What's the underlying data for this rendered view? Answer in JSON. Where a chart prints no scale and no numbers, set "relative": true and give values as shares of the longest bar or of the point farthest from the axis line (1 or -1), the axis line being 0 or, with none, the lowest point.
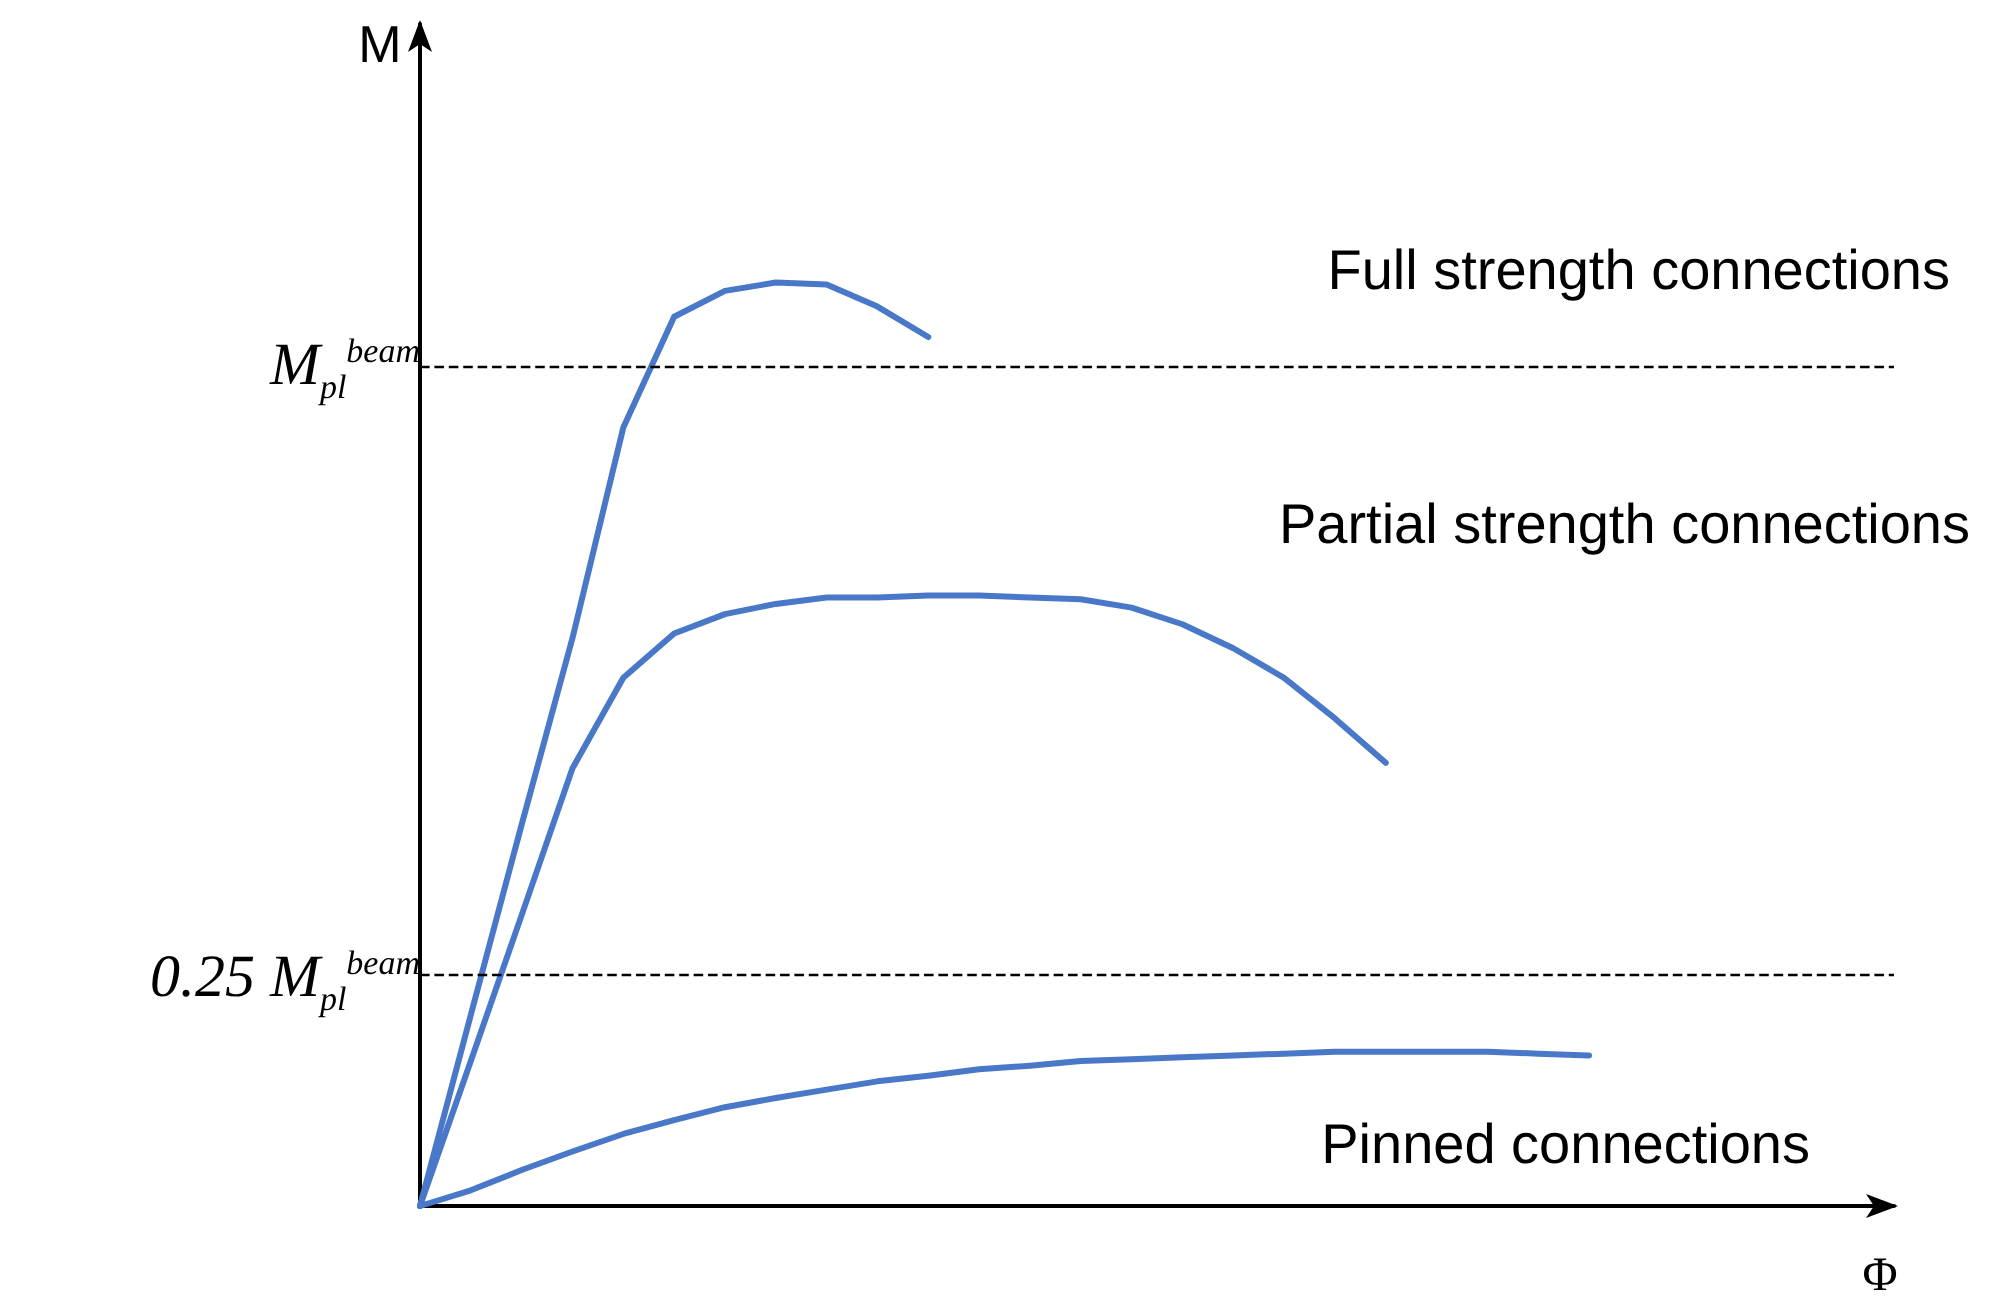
{
  "chart_data": {
    "type": "line",
    "relative": true,
    "xlabel": "Φ",
    "ylabel": "M",
    "categories": [
      null,
      null,
      null,
      null,
      null,
      null,
      null,
      null,
      null,
      null,
      null,
      null,
      null,
      null,
      null,
      null,
      null,
      null,
      null,
      null,
      null,
      null,
      null,
      null,
      null,
      null,
      null,
      null,
      null,
      null
    ],
    "series": [
      {
        "color": "#4a78c8",
        "values": [
          0,
          0.207,
          0.413,
          0.615,
          0.843,
          0.963,
          0.991,
          1.0,
          0.998,
          0.974,
          0.941,
          null,
          null,
          null,
          null,
          null,
          null,
          null,
          null,
          null,
          null,
          null,
          null,
          null,
          null,
          null,
          null,
          null,
          null,
          null
        ]
      },
      {
        "color": "#4a78c8",
        "values": [
          0,
          0.157,
          0.315,
          0.474,
          0.572,
          0.62,
          0.641,
          0.652,
          0.659,
          0.659,
          0.661,
          0.661,
          0.659,
          0.657,
          0.648,
          0.63,
          0.604,
          0.572,
          0.528,
          0.48,
          null,
          null,
          null,
          null,
          null,
          null,
          null,
          null,
          null,
          null
        ]
      },
      {
        "color": "#4a78c8",
        "values": [
          0,
          0.017,
          0.039,
          0.059,
          0.078,
          0.093,
          0.107,
          0.117,
          0.126,
          0.135,
          0.141,
          0.148,
          0.152,
          0.157,
          0.159,
          0.161,
          0.163,
          0.165,
          0.167,
          0.167,
          0.167,
          0.167,
          0.165,
          0.163,
          null,
          null,
          null,
          null,
          null,
          null
        ]
      }
    ],
    "ref_lines": [
      {
        "axis": "y",
        "value": 0.911,
        "label": "M$_{pl}$$^{beam}$",
        "line_style": "dashed"
      },
      {
        "axis": "y",
        "value": 0.248,
        "label": "0.25 M$_{pl}$$^{beam}$",
        "line_style": "dashed"
      }
    ],
    "annotations": [
      "Full strength connections",
      "Partial strength connections",
      "Pinned connections"
    ],
    "marker": "none",
    "line_style": "solid",
    "grid": false
  }
}
